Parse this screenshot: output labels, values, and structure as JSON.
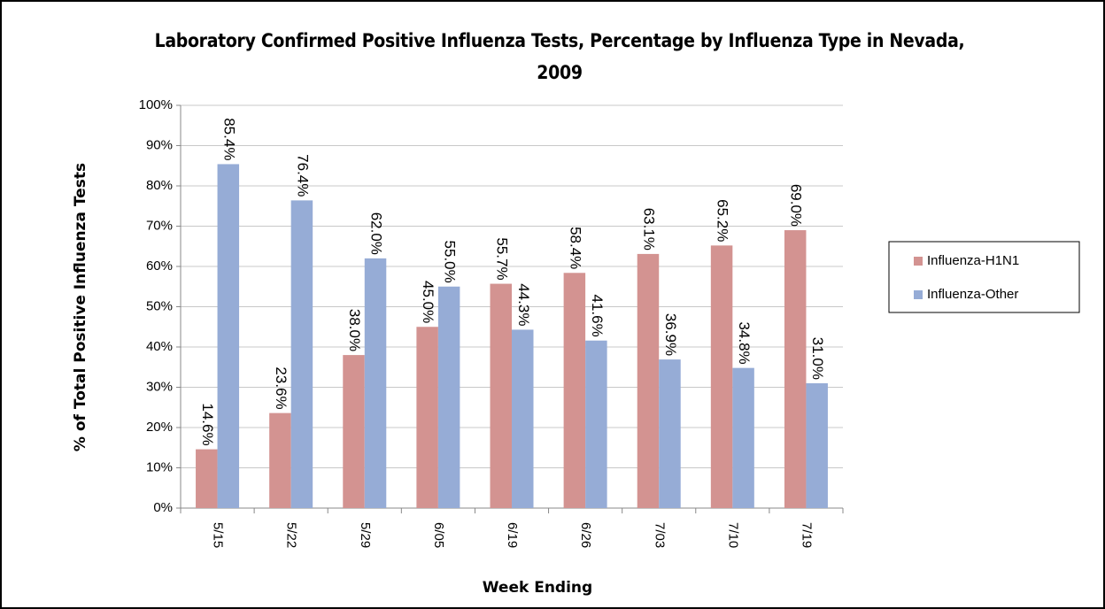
{
  "chart_data": {
    "type": "bar",
    "title": "Laboratory Confirmed Positive Influenza Tests, Percentage by Influenza Type in Nevada, 2009",
    "x_label": "Week Ending",
    "y_label": "% of Total Positive Influenza Tests",
    "categories": [
      "5/15",
      "5/22",
      "5/29",
      "6/05",
      "6/19",
      "6/26",
      "7/03",
      "7/10",
      "7/19"
    ],
    "series": [
      {
        "name": "Influenza-H1N1",
        "color": "#d39391",
        "values": [
          14.6,
          23.6,
          38.0,
          45.0,
          55.7,
          58.4,
          63.1,
          65.2,
          69.0
        ],
        "value_labels": [
          "14.6%",
          "23.6%",
          "38.0%",
          "45.0%",
          "55.7%",
          "58.4%",
          "63.1%",
          "65.2%",
          "69.0%"
        ]
      },
      {
        "name": "Influenza-Other",
        "color": "#96acd6",
        "values": [
          85.4,
          76.4,
          62.0,
          55.0,
          44.3,
          41.6,
          36.9,
          34.8,
          31.0
        ],
        "value_labels": [
          "85.4%",
          "76.4%",
          "62.0%",
          "55.0%",
          "44.3%",
          "41.6%",
          "36.9%",
          "34.8%",
          "31.0%"
        ]
      }
    ],
    "ylim": [
      0,
      100
    ],
    "yticks": [
      {
        "value": 0,
        "label": "0%"
      },
      {
        "value": 10,
        "label": "10%"
      },
      {
        "value": 20,
        "label": "20%"
      },
      {
        "value": 30,
        "label": "30%"
      },
      {
        "value": 40,
        "label": "40%"
      },
      {
        "value": 50,
        "label": "50%"
      },
      {
        "value": 60,
        "label": "60%"
      },
      {
        "value": 70,
        "label": "70%"
      },
      {
        "value": 80,
        "label": "80%"
      },
      {
        "value": 90,
        "label": "90%"
      },
      {
        "value": 100,
        "label": "100%"
      }
    ],
    "grid": true,
    "legend": "right"
  }
}
